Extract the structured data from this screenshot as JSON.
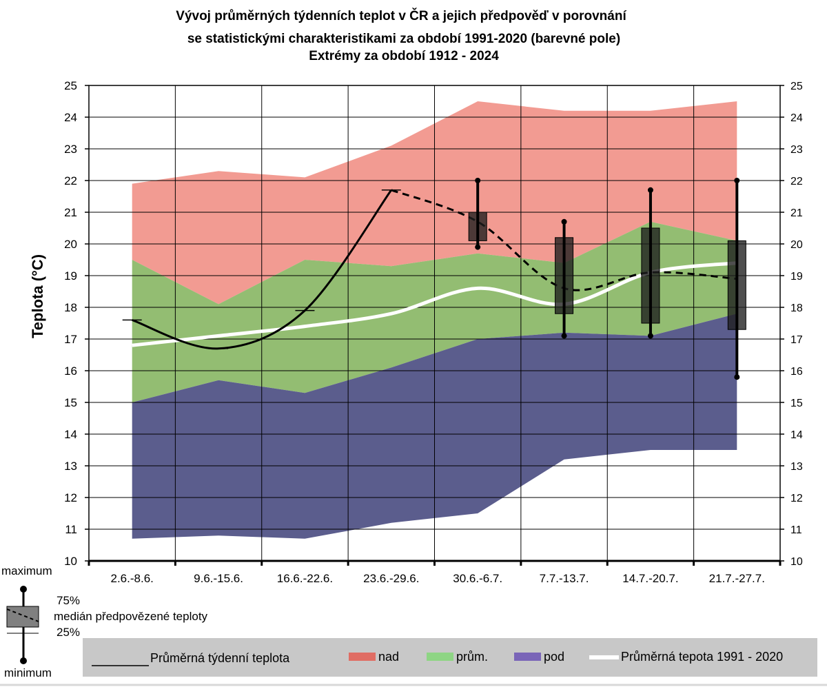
{
  "chart_data": {
    "type": "area",
    "title_lines": [
      "Vývoj průměrných týdenních teplot v ČR a jejich předpověď v porovnání",
      "se statistickými charakteristikami za období 1991-2020 (barevné pole)",
      "Extrémy za období 1912 - 2024"
    ],
    "ylabel": "Teplota (°C)",
    "xlabel": "",
    "ylim": [
      10,
      25
    ],
    "yticks": [
      10,
      11,
      12,
      13,
      14,
      15,
      16,
      17,
      18,
      19,
      20,
      21,
      22,
      23,
      24,
      25
    ],
    "categories": [
      "2.6.-8.6.",
      "9.6.-15.6.",
      "16.6.-22.6.",
      "23.6.-29.6.",
      "30.6.-6.7.",
      "7.7.-13.7.",
      "14.7.-20.7.",
      "21.7.-27.7."
    ],
    "grid": true,
    "bands": {
      "upper_max": [
        21.9,
        22.3,
        22.1,
        23.1,
        24.5,
        24.2,
        24.2,
        24.5
      ],
      "above_from": [
        19.5,
        18.1,
        19.5,
        19.3,
        19.7,
        19.4,
        20.7,
        20.1
      ],
      "average_from": [
        15.0,
        15.7,
        15.3,
        16.1,
        17.0,
        17.2,
        17.1,
        17.8
      ],
      "below_from": [
        10.7,
        10.8,
        10.7,
        11.2,
        11.5,
        13.2,
        13.5,
        13.5
      ],
      "colors": {
        "above": "#f29b92",
        "average": "#93bd72",
        "below": "#5b5d8d"
      }
    },
    "series": [
      {
        "name": "Průměrná týdenní teplota",
        "values": [
          17.6,
          16.7,
          17.9,
          21.7,
          null,
          null,
          null,
          null
        ]
      },
      {
        "name": "Průměrná tepota 1991 - 2020",
        "values": [
          16.8,
          17.1,
          17.4,
          17.8,
          18.6,
          18.1,
          19.1,
          19.4
        ]
      },
      {
        "name": "medián předpovězené teploty",
        "values": [
          null,
          null,
          null,
          21.7,
          20.7,
          18.6,
          19.1,
          18.9
        ]
      }
    ],
    "forecast_boxes": [
      {
        "category": "30.6.-6.7.",
        "min": 19.9,
        "p25": 20.1,
        "median": 20.7,
        "p75": 21.0,
        "max": 22.0
      },
      {
        "category": "7.7.-13.7.",
        "min": 17.1,
        "p25": 17.8,
        "median": 18.6,
        "p75": 20.2,
        "max": 20.7
      },
      {
        "category": "14.7.-20.7.",
        "min": 17.1,
        "p25": 17.5,
        "median": 19.1,
        "p75": 20.5,
        "max": 21.7
      },
      {
        "category": "21.7.-27.7.",
        "min": 15.8,
        "p25": 17.3,
        "median": 18.9,
        "p75": 20.1,
        "max": 22.0
      }
    ],
    "box_key": {
      "maximum": "maximum",
      "p75": "75%",
      "median": "medián předpovězené teploty",
      "p25": "25%",
      "minimum": "minimum"
    },
    "legend": {
      "placement": "bottom",
      "items": [
        {
          "label": "Průměrná týdenní teplota",
          "kind": "line",
          "color": "#000000"
        },
        {
          "label": "nad",
          "kind": "patch",
          "color": "#e06d64"
        },
        {
          "label": "prům.",
          "kind": "patch",
          "color": "#8ed584"
        },
        {
          "label": "pod",
          "kind": "patch",
          "color": "#7a65b8"
        },
        {
          "label": "Průměrná tepota 1991 - 2020",
          "kind": "line",
          "color": "#ffffff"
        }
      ],
      "background": "#c8c8c8"
    }
  }
}
